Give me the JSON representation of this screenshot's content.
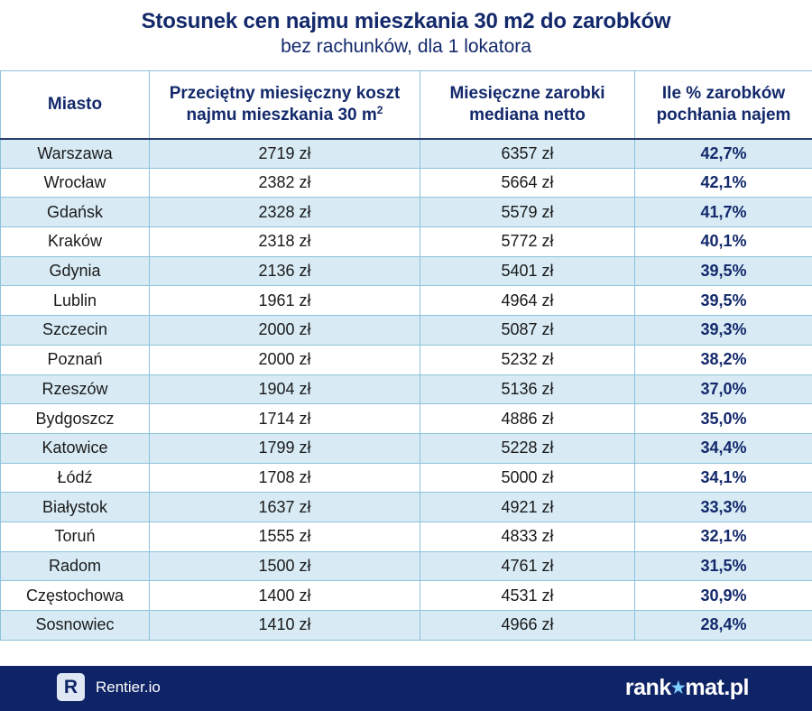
{
  "header": {
    "title": "Stosunek cen najmu mieszkania 30 m2 do zarobków",
    "subtitle": "bez rachunków, dla 1 lokatora"
  },
  "table": {
    "columns": {
      "city": "Miasto",
      "rent": "Przeciętny miesięczny koszt najmu mieszkania 30 m",
      "rent_sup": "2",
      "salary_line1": "Miesięczne zarobki",
      "salary_line2": "mediana netto",
      "share_line1": "Ile % zarobków",
      "share_line2": "pochłania najem"
    },
    "rows": [
      {
        "city": "Warszawa",
        "rent": "2719 zł",
        "salary": "6357 zł",
        "share": "42,7%"
      },
      {
        "city": "Wrocław",
        "rent": "2382 zł",
        "salary": "5664 zł",
        "share": "42,1%"
      },
      {
        "city": "Gdańsk",
        "rent": "2328 zł",
        "salary": "5579 zł",
        "share": "41,7%"
      },
      {
        "city": "Kraków",
        "rent": "2318 zł",
        "salary": "5772 zł",
        "share": "40,1%"
      },
      {
        "city": "Gdynia",
        "rent": "2136 zł",
        "salary": "5401 zł",
        "share": "39,5%"
      },
      {
        "city": "Lublin",
        "rent": "1961 zł",
        "salary": "4964 zł",
        "share": "39,5%"
      },
      {
        "city": "Szczecin",
        "rent": "2000 zł",
        "salary": "5087 zł",
        "share": "39,3%"
      },
      {
        "city": "Poznań",
        "rent": "2000 zł",
        "salary": "5232 zł",
        "share": "38,2%"
      },
      {
        "city": "Rzeszów",
        "rent": "1904 zł",
        "salary": "5136 zł",
        "share": "37,0%"
      },
      {
        "city": "Bydgoszcz",
        "rent": "1714 zł",
        "salary": "4886 zł",
        "share": "35,0%"
      },
      {
        "city": "Katowice",
        "rent": "1799 zł",
        "salary": "5228 zł",
        "share": "34,4%"
      },
      {
        "city": "Łódź",
        "rent": "1708 zł",
        "salary": "5000 zł",
        "share": "34,1%"
      },
      {
        "city": "Białystok",
        "rent": "1637 zł",
        "salary": "4921 zł",
        "share": "33,3%"
      },
      {
        "city": "Toruń",
        "rent": "1555 zł",
        "salary": "4833 zł",
        "share": "32,1%"
      },
      {
        "city": "Radom",
        "rent": "1500 zł",
        "salary": "4761 zł",
        "share": "31,5%"
      },
      {
        "city": "Częstochowa",
        "rent": "1400 zł",
        "salary": "4531 zł",
        "share": "30,9%"
      },
      {
        "city": "Sosnowiec",
        "rent": "1410 zł",
        "salary": "4966 zł",
        "share": "28,4%"
      }
    ]
  },
  "chart_data": {
    "type": "table",
    "title": "Stosunek cen najmu mieszkania 30 m2 do zarobków",
    "subtitle": "bez rachunków, dla 1 lokatora",
    "columns": [
      "Miasto",
      "Przeciętny miesięczny koszt najmu mieszkania 30 m2",
      "Miesięczne zarobki mediana netto",
      "Ile % zarobków pochłania najem"
    ],
    "categories": [
      "Warszawa",
      "Wrocław",
      "Gdańsk",
      "Kraków",
      "Gdynia",
      "Lublin",
      "Szczecin",
      "Poznań",
      "Rzeszów",
      "Bydgoszcz",
      "Katowice",
      "Łódź",
      "Białystok",
      "Toruń",
      "Radom",
      "Częstochowa",
      "Sosnowiec"
    ],
    "series": [
      {
        "name": "Przeciętny miesięczny koszt najmu mieszkania 30 m2",
        "values": [
          2719,
          2382,
          2328,
          2318,
          2136,
          1961,
          2000,
          2000,
          1904,
          1714,
          1799,
          1708,
          1637,
          1555,
          1500,
          1400,
          1410
        ]
      },
      {
        "name": "Miesięczne zarobki mediana netto",
        "values": [
          6357,
          5664,
          5579,
          5772,
          5401,
          4964,
          5087,
          5232,
          5136,
          4886,
          5228,
          5000,
          4921,
          4833,
          4761,
          4531,
          4966
        ]
      },
      {
        "name": "Ile % zarobków pochłania najem",
        "values": [
          42.7,
          42.1,
          41.7,
          40.1,
          39.5,
          39.5,
          39.3,
          38.2,
          37.0,
          35.0,
          34.4,
          34.1,
          33.3,
          32.1,
          31.5,
          30.9,
          28.4
        ]
      }
    ]
  },
  "footer": {
    "logo_letter": "R",
    "brand_left": "Rentier.io",
    "brand_right_a": "rank",
    "brand_right_star": "★",
    "brand_right_b": "mat.pl"
  },
  "colors": {
    "navy": "#13296b",
    "footer_bg": "#0f2466",
    "row_stripe": "#d8ebf5",
    "grid": "#8cc2dc"
  }
}
